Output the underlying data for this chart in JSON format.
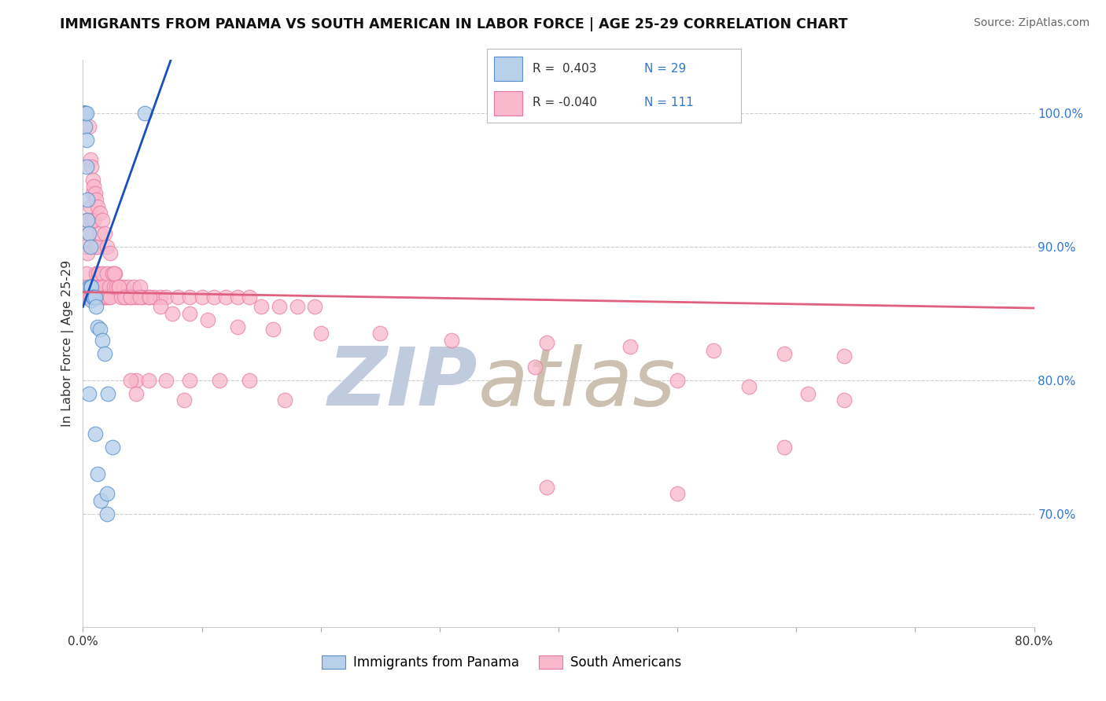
{
  "title": "IMMIGRANTS FROM PANAMA VS SOUTH AMERICAN IN LABOR FORCE | AGE 25-29 CORRELATION CHART",
  "source": "Source: ZipAtlas.com",
  "ylabel": "In Labor Force | Age 25-29",
  "y_tick_labels": [
    "70.0%",
    "80.0%",
    "90.0%",
    "100.0%"
  ],
  "y_tick_values": [
    0.7,
    0.8,
    0.9,
    1.0
  ],
  "x_range": [
    0.0,
    0.8
  ],
  "y_range": [
    0.615,
    1.04
  ],
  "panama_fill": "#b8d0ea",
  "panama_edge": "#5590cc",
  "south_fill": "#f9b8cc",
  "south_edge": "#e878a0",
  "panama_line_color": "#1a50bb",
  "south_line_color": "#e06080",
  "watermark_zip_color": "#c0ccdd",
  "watermark_atlas_color": "#ccc0b0",
  "background": "#ffffff",
  "grid_color": "#cccccc",
  "panama_x": [
    0.001,
    0.001,
    0.001,
    0.001,
    0.002,
    0.002,
    0.002,
    0.003,
    0.003,
    0.003,
    0.004,
    0.004,
    0.005,
    0.005,
    0.006,
    0.006,
    0.007,
    0.007,
    0.008,
    0.009,
    0.01,
    0.011,
    0.012,
    0.014,
    0.016,
    0.018,
    0.021,
    0.025,
    0.052
  ],
  "panama_y": [
    1.0,
    1.0,
    1.0,
    1.0,
    1.0,
    1.0,
    0.99,
    1.0,
    0.98,
    0.96,
    0.935,
    0.92,
    0.91,
    0.87,
    0.9,
    0.87,
    0.87,
    0.86,
    0.862,
    0.862,
    0.862,
    0.855,
    0.84,
    0.838,
    0.83,
    0.82,
    0.79,
    0.75,
    1.0
  ],
  "south_x": [
    0.001,
    0.002,
    0.002,
    0.003,
    0.003,
    0.004,
    0.004,
    0.005,
    0.005,
    0.005,
    0.006,
    0.006,
    0.007,
    0.007,
    0.008,
    0.008,
    0.008,
    0.009,
    0.009,
    0.01,
    0.01,
    0.011,
    0.011,
    0.012,
    0.012,
    0.013,
    0.013,
    0.014,
    0.015,
    0.015,
    0.016,
    0.016,
    0.017,
    0.018,
    0.019,
    0.02,
    0.021,
    0.022,
    0.023,
    0.025,
    0.026,
    0.027,
    0.028,
    0.03,
    0.032,
    0.034,
    0.036,
    0.038,
    0.04,
    0.043,
    0.045,
    0.048,
    0.05,
    0.055,
    0.06,
    0.065,
    0.07,
    0.08,
    0.09,
    0.1,
    0.11,
    0.12,
    0.13,
    0.14,
    0.15,
    0.165,
    0.18,
    0.195,
    0.005,
    0.006,
    0.007,
    0.008,
    0.009,
    0.01,
    0.011,
    0.012,
    0.014,
    0.016,
    0.018,
    0.02,
    0.023,
    0.026,
    0.03,
    0.035,
    0.04,
    0.048,
    0.056,
    0.065,
    0.075,
    0.09,
    0.105,
    0.13,
    0.16,
    0.2,
    0.25,
    0.31,
    0.39,
    0.46,
    0.53,
    0.59,
    0.64,
    0.38,
    0.5,
    0.56,
    0.61,
    0.045,
    0.055,
    0.07,
    0.09,
    0.115,
    0.14
  ],
  "south_y": [
    0.862,
    0.87,
    0.9,
    0.88,
    0.92,
    0.862,
    0.895,
    0.87,
    0.91,
    0.862,
    0.93,
    0.862,
    0.92,
    0.87,
    0.94,
    0.87,
    0.862,
    0.92,
    0.87,
    0.862,
    0.9,
    0.88,
    0.87,
    0.9,
    0.862,
    0.88,
    0.87,
    0.91,
    0.87,
    0.862,
    0.88,
    0.862,
    0.87,
    0.862,
    0.862,
    0.88,
    0.862,
    0.87,
    0.862,
    0.88,
    0.87,
    0.88,
    0.87,
    0.87,
    0.862,
    0.87,
    0.862,
    0.87,
    0.862,
    0.87,
    0.862,
    0.87,
    0.862,
    0.862,
    0.862,
    0.862,
    0.862,
    0.862,
    0.862,
    0.862,
    0.862,
    0.862,
    0.862,
    0.862,
    0.855,
    0.855,
    0.855,
    0.855,
    0.99,
    0.965,
    0.96,
    0.95,
    0.945,
    0.94,
    0.935,
    0.93,
    0.925,
    0.92,
    0.91,
    0.9,
    0.895,
    0.88,
    0.87,
    0.862,
    0.862,
    0.862,
    0.862,
    0.855,
    0.85,
    0.85,
    0.845,
    0.84,
    0.838,
    0.835,
    0.835,
    0.83,
    0.828,
    0.825,
    0.822,
    0.82,
    0.818,
    0.81,
    0.8,
    0.795,
    0.79,
    0.8,
    0.8,
    0.8,
    0.8,
    0.8,
    0.8
  ],
  "south_x_low": [
    0.04,
    0.045,
    0.085,
    0.17,
    0.39,
    0.5,
    0.59,
    0.64
  ],
  "south_y_low": [
    0.8,
    0.79,
    0.785,
    0.785,
    0.72,
    0.715,
    0.75,
    0.785
  ],
  "panama_x_low": [
    0.005,
    0.01,
    0.012,
    0.015,
    0.02,
    0.02
  ],
  "panama_y_low": [
    0.79,
    0.76,
    0.73,
    0.71,
    0.715,
    0.7
  ]
}
